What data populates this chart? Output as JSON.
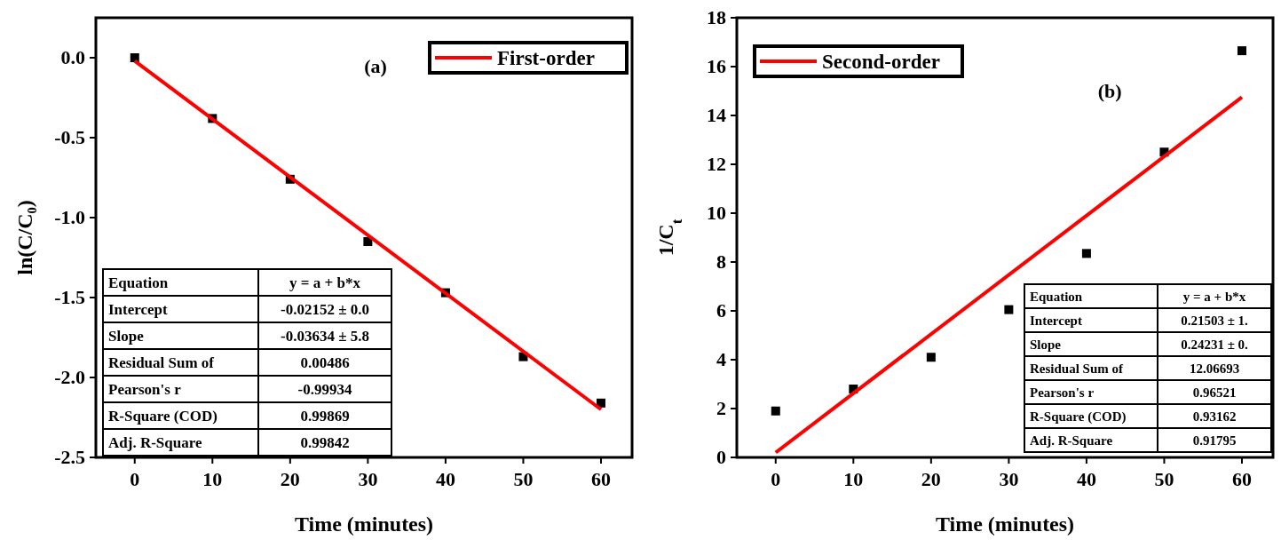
{
  "chart_data": [
    {
      "type": "scatter",
      "xlabel": "Time (minutes)",
      "ylabel": "ln(C/C₀)",
      "xlim": [
        -5,
        64
      ],
      "xticks": [
        0,
        10,
        20,
        30,
        40,
        50,
        60
      ],
      "ylim": [
        -2.5,
        0.25
      ],
      "yticks": [
        {
          "value": -2.5,
          "label": "-2.5"
        },
        {
          "value": -2.0,
          "label": "-2.0"
        },
        {
          "value": -1.5,
          "label": "-1.5"
        },
        {
          "value": -1.0,
          "label": "-1.0"
        },
        {
          "value": -0.5,
          "label": "-0.5"
        },
        {
          "value": 0.0,
          "label": "0.0"
        }
      ],
      "grid": false,
      "legend": "top right",
      "series": [
        {
          "type": "scatter",
          "marker": "square",
          "color": "#000000",
          "x": [
            0,
            10,
            20,
            30,
            40,
            50,
            60
          ],
          "values": [
            0,
            -0.38,
            -0.76,
            -1.15,
            -1.47,
            -1.87,
            -2.16
          ]
        },
        {
          "type": "line",
          "name": "First-order",
          "marker": "none",
          "color": "#ff0000",
          "x": [
            0,
            60
          ],
          "values": [
            -0.02,
            -2.2
          ]
        }
      ],
      "annotations": [
        "(a)",
        "Equation",
        "y = a + b*x",
        "Intercept",
        "-0.02152 ± 0.0",
        "Slope",
        "-0.03634 ± 5.8",
        "Residual Sum of",
        "0.00486",
        "Pearson's r",
        "-0.99934",
        "R-Square (COD)",
        "0.99869",
        "Adj. R-Square",
        "0.99842"
      ]
    },
    {
      "type": "scatter",
      "xlabel": "Time (minutes)",
      "ylabel": "1/C$_{t}$",
      "xlim": [
        -5,
        64
      ],
      "xticks": [
        0,
        10,
        20,
        30,
        40,
        50,
        60
      ],
      "ylim": [
        0,
        18
      ],
      "yticks": [
        0,
        2,
        4,
        6,
        8,
        10,
        12,
        14,
        16,
        18
      ],
      "grid": false,
      "legend": "top left",
      "series": [
        {
          "type": "scatter",
          "marker": "square",
          "color": "#000000",
          "x": [
            0,
            10,
            20,
            30,
            40,
            50,
            60
          ],
          "values": [
            1.9,
            2.8,
            4.1,
            6.05,
            8.35,
            12.5,
            16.65
          ]
        },
        {
          "type": "line",
          "name": "Second-order",
          "marker": "none",
          "color": "#ff0000",
          "x": [
            0,
            60
          ],
          "values": [
            0.2,
            14.75
          ]
        }
      ],
      "annotations": [
        "(b)",
        "Equation",
        "y = a + b*x",
        "Intercept",
        "0.21503 ± 1.",
        "Slope",
        "0.24231 ± 0.",
        "Residual Sum of",
        "12.06693",
        "Pearson's r",
        "0.96521",
        "R-Square (COD)",
        "0.93162",
        "Adj. R-Square",
        "0.91795"
      ]
    }
  ]
}
